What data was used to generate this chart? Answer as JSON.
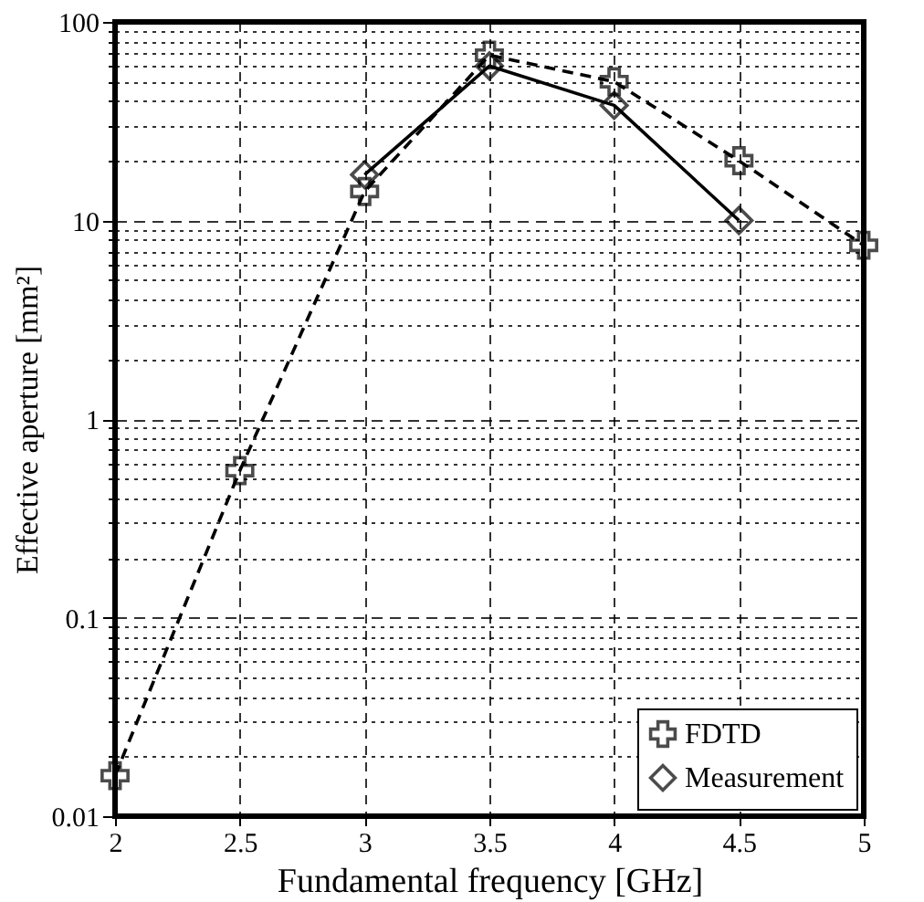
{
  "chart_data": {
    "type": "line",
    "xlabel": "Fundamental frequency [GHz]",
    "ylabel": "Effective aperture [mm²]",
    "log": "y",
    "grid": true,
    "legend": "bottom right",
    "xlim": [
      2,
      5
    ],
    "xticks": [
      2,
      2.5,
      3,
      3.5,
      4,
      4.5,
      5
    ],
    "ylim": [
      0.01,
      100
    ],
    "yticks": [
      {
        "value": 0.01,
        "label": "0.01"
      },
      {
        "value": 0.02,
        "label": null
      },
      {
        "value": 0.03,
        "label": null
      },
      {
        "value": 0.04,
        "label": null
      },
      {
        "value": 0.05,
        "label": null
      },
      {
        "value": 0.06,
        "label": null
      },
      {
        "value": 0.07,
        "label": null
      },
      {
        "value": 0.08,
        "label": null
      },
      {
        "value": 0.09,
        "label": null
      },
      {
        "value": 0.1,
        "label": "0.1"
      },
      {
        "value": 0.2,
        "label": null
      },
      {
        "value": 0.3,
        "label": null
      },
      {
        "value": 0.4,
        "label": null
      },
      {
        "value": 0.5,
        "label": null
      },
      {
        "value": 0.6,
        "label": null
      },
      {
        "value": 0.7,
        "label": null
      },
      {
        "value": 0.8,
        "label": null
      },
      {
        "value": 0.9,
        "label": null
      },
      1,
      {
        "value": 2,
        "label": null
      },
      {
        "value": 3,
        "label": null
      },
      {
        "value": 4,
        "label": null
      },
      {
        "value": 5,
        "label": null
      },
      {
        "value": 6,
        "label": null
      },
      {
        "value": 7,
        "label": null
      },
      {
        "value": 8,
        "label": null
      },
      {
        "value": 9,
        "label": null
      },
      10,
      {
        "value": 20,
        "label": null
      },
      {
        "value": 30,
        "label": null
      },
      {
        "value": 40,
        "label": null
      },
      {
        "value": 50,
        "label": null
      },
      {
        "value": 60,
        "label": null
      },
      {
        "value": 70,
        "label": null
      },
      {
        "value": 80,
        "label": null
      },
      {
        "value": 90,
        "label": null
      },
      100
    ],
    "series": [
      {
        "name": "FDTD",
        "color": "#000000",
        "line_style": "dashed",
        "marker": "cross",
        "x": [
          2,
          2.5,
          3,
          3.5,
          4,
          4.5,
          5
        ],
        "values": [
          0.016,
          0.55,
          14,
          68,
          50,
          20,
          7.5
        ]
      },
      {
        "name": "Measurement",
        "color": "#000000",
        "line_style": "solid",
        "marker": "diamond",
        "x": [
          3,
          3.5,
          4,
          4.5
        ],
        "values": [
          17,
          60,
          38,
          10
        ]
      }
    ]
  }
}
